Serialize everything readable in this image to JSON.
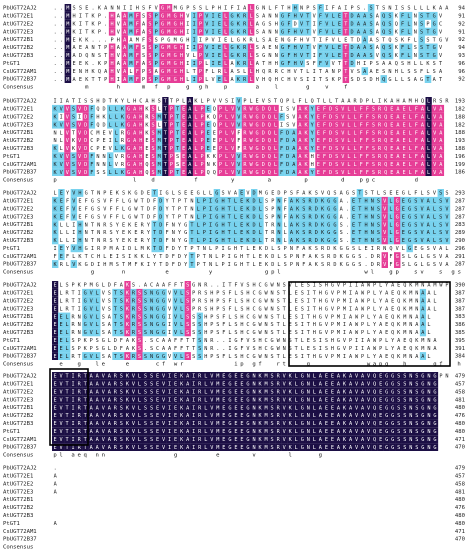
{
  "alignment": {
    "sequence_names": [
      "PbUGT72AJ2",
      "AtUGT72E1",
      "AtUGT72E2",
      "AtUGT72E3",
      "AtUGT72B1",
      "AtUGT72B2",
      "AtUGT72B3",
      "PtGT1",
      "CsUGT72AM1",
      "PbUGT72B37"
    ],
    "consensus_label": "Consensus",
    "blocks": [
      {
        "numbers": [
          "94",
          "91",
          "92",
          "91",
          "92",
          "94",
          "93",
          "96",
          "96",
          "92"
        ],
        "sequences": [
          "..MSSE.KANNIIHSFVGMMGPSSLPHIFIALGNLFTHHNPSFIFAIPS.STSNISSLLLKAA",
          "..MHITKP.HAAMFSSPGMGHVIPVIELGKRLSANNGFHVTVFVLETDAASAQSKFLNSTGV",
          "..MKITKP.HVAMFASPGMGHIIPVIELGKRLAGSHGFDVTIFVLETDAASAQSQFLNSPGC",
          "..MKITKP.HVAMFASPGMGHIIPVIELGKRLSANNGFHVTVFVLETDAASAQSKFLNSTGV",
          "..MEKK...PHAAMFSSPGMGHIIPVIELGKRLSAENGFHVTIFVLETDAASTQSKFLSSTGV",
          "..MAEANTPHAAMFSSPGMGHIIPVIELGKRLSAENGFHVTVFVLETDAASAQSKFLSSTGV",
          "..MADQNSTHVAMFSSPGMGHVLPVIELGKRLSGNNGFHVTIFVLETDAASVQSKFLNSTGV",
          "..MEEK.KPHAAMFASPGMGHIIPLIELAKRLATHHGFHVSFFVVTTDHIPSAAQSHLLKST",
          "..MENHKQAHVALFPSAGMGHLTPFLRLASLLHQRRCHVTLITANPTVSAAESNHLSSFLSA",
          "..MAEKTTPHIAMFPSPGMGHLIPLVELAKRLVHQHCHVSIITSKPTSDSDHQGLLSAGTAT"
        ],
        "consensus": "     m    h   m f p  g gh  p    a  l    g  v  f  "
      },
      {
        "numbers": [
          "193",
          "182",
          "188",
          "182",
          "188",
          "193",
          "188",
          "196",
          "199",
          "186"
        ],
        "sequences": [
          "IIATISSHDTKYLHCAHSTTPLAKLPVVSIVPLEVSTQPLFLQTLLTAARDPLIKAHAMHQLRSR",
          "KVVSVDFQDLLKGAHKSLTPTEALPEQPLVVRWGDQLISVAKYEFDSVLLFFSRQEAELFALVA",
          "KIVSIDFHKLLKGAHRSMTPTEALPKQPLVVRWGDQLFSVAKYEFDSVLLFFSRQEAELFALVA",
          "KVVSVDFQDLLKGAHKSLTPTEALPEQPLVVRWGDQLISVAKYEFDSVLLFFSRQEAELFALVA",
          "NLVTVDCMEVLRGAHKSMTPTEALPEEPLVFRWGDQLFDAAKYEFDSVLLFFSRQEAELFALVA",
          "NLVKVDCPEILRGAHESMTPTEALPEEPLVFRWGDQLFDAAKYEFDSVLLFFSRQEAELFALVA",
          "KLVKVDCPEVLKGAHESMTPTEALPEEPLVFRWGDQLFDAAKYEFDSVLLFFSRQEAELFALVA",
          "KVVSVDFNNLVRGAHESMTPSEALPKKPLVVRWGDQLFDAAKHEFDSVLLFFSRQEAELFALVA",
          "KVVSVDFNNLVRGAHQSMTPSEALPNKPLVVRWGDQLFDAAKHEFDSVLLFFSRQEAELFALVA",
          "KVVSVDFSSLLKGAHQSMTPTEALPQQPLVVRWGDQLFDAAKYEFDSVLLFFSRQEAELFALVA"
        ],
        "consensus": "p            l  d      f     y     a     p     d  pgc      d      "
      },
      {
        "numbers": [
          "293",
          "287",
          "287",
          "287",
          "283",
          "289",
          "290",
          "296",
          "291",
          "287"
        ],
        "sequences": [
          "LEYVHGTNPEKSKGDETIGLSEEGLLGSVAEVDMGEDPSFAKSVQSAGSTSTLSEEGLFLSVSS",
          "KEFVEFGSVFFLGWTDFDYTPTNLPIGHTLEKDLSPNFAKSRDKGGA.ETHNSVLGEGSVALSV",
          "KEFVEFGSVFFLGWTDFDYTPTNLPIGHTLEKDLSPNFAKSRDKGGA.ETHNSVLGEGSVALSV",
          "KEFVEFGSVFFLGWTDFDYTPTNLPIGHTLEKDLSPNFAKSRDKGGA.ETHNSVLGEGSVALSV",
          "KLLIHNTNRSYEKERYTDFNYGTLPIGHTLEKDLTRNLAKSRDKGGS.ETHNSVLGEGSVALSV",
          "KLLIHNTNRSYEKERYTDFNYGTLPIGHTLEKDLTRNLAKSRDKGGS.ETHNSVLGEGSVALSV",
          "KLLIHNTNRSYEKERYTDFNYGTLPIGHTLEKDLTRNLAKSRDKGGS.ETHNSVLGEGSVALSV",
          "IEYVHGIRPMAIDLMKTDFDYTPTNLPIGHTLEKDLSPNFAKSRDKGGSLEIRNQVLGEGSVAL",
          "FEFLKTCHLEISIKKLYTDFDYTPTNLPIGHTLEKDLSPNFAKSRDKGGS.DRVFGSLGLGSVA",
          "KRLVKGDIHMSTMFKIYTDFDYTPTNLPIGHTLEKDLSPNFAKSRDKGGS.DRVFGSLGLGSVA"
        ],
        "consensus": "      g    n      e      y        gpl             wl  gp  sv  s gs  g  "
      },
      {
        "numbers": [
          "390",
          "387",
          "387",
          "387",
          "383",
          "386",
          "385",
          "395",
          "391",
          "384"
        ],
        "sequences": [
          "ELSPKPMGLDFAKS.ACAAFFTSGNR..ITFVSHCGWNSVLESISHGVPIIAWPLYAEQKMNAMWP",
          "ELRTIGVLVSTSKRSSNGGVVLSPRSHPSFLSHCGWNSTLESITHGVPMIAWPLYAEQKMNAAL",
          "ELRTIGVLVSTSKRSSNGGVVLSPRSHPSFLSHCGWNSTLESITHGVPMIAWPLYAEQKMNAAL",
          "ELRTIGVLVSTSKRSSNGGVVLSPRSHPSFLSHCGWNSTLESITHGVPMIAWPLYAEQKMNAAL",
          "EELRNGVLSATSKRSSNGGIVLSSSHPSFLSHCGWNSTLESITHGVPMIAWPLYAEQKMNAAL",
          "EELRNGVLSATSKRSSNGGIVLSSSHPSFLSHCGWNSTLESITHGVPMIAWPLYAEQKMNAAL",
          "EELRNGVLSATSKRSSNGGIVLSSSHPSFLSHCGWNSTLESITHGVPMIAWPLYAEQKMNAAL",
          "EELSPKPSGLDFAKS.SCAAFFTTSNR..IGFVSHCGWNSTLESISHGVPIIAWPLYAEQKMNA",
          "EELSPKPSGLDFAKS.SCAAFFTTSNR..IGFVSHCGWNSTLESISHGVPIIAWPLYAEQKMNA",
          "EELRTGVLSATSKRSSNGGVVLSSSHPSFLSHCGWNSTLESITHGVPMIAWPLYAEQKMNAAL"
        ],
        "consensus": " e  g  le   e    cf wr        ip gf  rt   g         wapq  h    gf  h gw s ies  g pi w"
      },
      {
        "numbers": [
          "479",
          "457",
          "458",
          "481",
          "480",
          "476",
          "480",
          "480",
          "471",
          "470"
        ],
        "sequences": [
          "EVTIRTAAVARSKVLSSEVIEKAIRLVMEGEEGNKMSRVKLGNLAEEAKAVAVQEGGSSNSGNGPN",
          "EVTIRTAAVARSKVLSSEVIEKAIRLVMEGEEGNKMSRVKLGNLAEEAKAVAVQEGGSSNSGNG",
          "EVTIRTAAVARSKVLSSEVIEKAIRLVMEGEEGNKMSRVKLGNLAEEAKAVAVQEGGSSNSGNG",
          "EVTIRTAAVARSKVLSSEVIEKAIRLVMEGEEGNKMSRVKLGNLAEEAKAVAVQEGGSSNSGNG",
          "EVTIRTAAVARSKVLSSEVIEKAIRLVMEGEEGNKMSRVKLGNLAEEAKAVAVQEGGSSNSGNG",
          "EVTIRTAAVARSKVLSSEVIEKAIRLVMEGEEGNKMSRVKLGNLAEEAKAVAVQEGGSSNSGNG",
          "EVTIRTAAVARSKVLSSEVIEKAIRLVMEGEEGNKMSRVKLGNLAEEAKAVAVQEGGSSNSGNG",
          "EVTIRTAAVARSKVLSSEVIEKAIRLVMEGEEGNKMSRVKLGNLAEEAKAVAVQEGGSSNSGNG",
          "EVTIRTAAVARSKVLSSEVIEKAIRLVMEGEEGNKMSRVKLGNLAEEAKAVAVQEGGSSNSGNG",
          "EVTIRTAAVARSKVLSSEVIEKAIRLVMEGEEGNKMSRVKLGNLAEEAKAVAVQEGGSSNSGNG"
        ],
        "consensus": "pl aeq nn           g      e     v     l    g         "
      },
      {
        "numbers": [
          "479",
          "457",
          "458",
          "481",
          "480",
          "476",
          "480",
          "480",
          "471",
          "470"
        ],
        "sequences": [
          ".",
          "A",
          "A",
          "A",
          "",
          "",
          "",
          "A",
          "",
          ""
        ],
        "consensus": ""
      }
    ]
  },
  "colors": {
    "identical_bg": "#1c0f45",
    "identical_fg": "#ffffff",
    "high_bg": "#e63d96",
    "high_fg": "#ffffff",
    "mid_bg": "#78d2ee",
    "mid_fg": "#1a1a1a",
    "none_fg": "#222222"
  }
}
